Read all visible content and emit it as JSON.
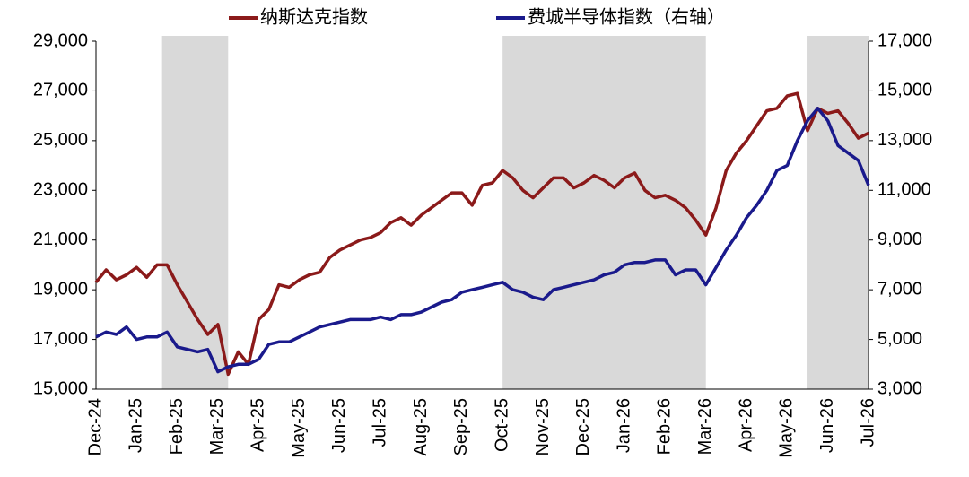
{
  "chart_data": {
    "type": "line",
    "categories": [
      "Dec-24",
      null,
      null,
      null,
      "Jan-25",
      null,
      null,
      null,
      "Feb-25",
      null,
      null,
      null,
      "Mar-25",
      null,
      null,
      null,
      "Apr-25",
      null,
      null,
      null,
      "May-25",
      null,
      null,
      null,
      "Jun-25",
      null,
      null,
      null,
      "Jul-25",
      null,
      null,
      null,
      "Aug-25",
      null,
      null,
      null,
      "Sep-25",
      null,
      null,
      null,
      "Oct-25",
      null,
      null,
      null,
      "Nov-25",
      null,
      null,
      null,
      "Dec-25",
      null,
      null,
      null,
      "Jan-26",
      null,
      null,
      null,
      "Feb-26",
      null,
      null,
      null,
      "Mar-26",
      null,
      null,
      null,
      "Apr-26",
      null,
      null,
      null,
      "May-26",
      null,
      null,
      null,
      "Jun-26",
      null,
      null,
      null,
      "Jul-26"
    ],
    "series": [
      {
        "name": "纳斯达克指数",
        "color": "#8b1a1a",
        "values": [
          19300,
          19800,
          19400,
          19600,
          19900,
          19500,
          20000,
          20000,
          19200,
          18500,
          17800,
          17200,
          17600,
          15600,
          16500,
          16000,
          17800,
          18200,
          19200,
          19100,
          19400,
          19600,
          19700,
          20300,
          20600,
          20800,
          21000,
          21100,
          21300,
          21700,
          21900,
          21600,
          22000,
          22300,
          22600,
          22900,
          22900,
          22400,
          23200,
          23300,
          23800,
          23500,
          23000,
          22700,
          23100,
          23500,
          23500,
          23100,
          23300,
          23600,
          23400,
          23100,
          23500,
          23700,
          23000,
          22700,
          22800,
          22600,
          22300,
          21800,
          21200,
          22300,
          23800,
          24500,
          25000,
          25600,
          26200,
          26300,
          26800,
          26900,
          25400,
          26300,
          26100,
          26200,
          25700,
          25100,
          25300
        ]
      },
      {
        "name": "费城半导体指数（右轴）",
        "color": "#1a1a8c",
        "axis": "y2",
        "values": [
          5100,
          5300,
          5200,
          5500,
          5000,
          5100,
          5100,
          5300,
          4700,
          4600,
          4500,
          4600,
          3700,
          3900,
          4000,
          4000,
          4200,
          4800,
          4900,
          4900,
          5100,
          5300,
          5500,
          5600,
          5700,
          5800,
          5800,
          5800,
          5900,
          5800,
          6000,
          6000,
          6100,
          6300,
          6500,
          6600,
          6900,
          7000,
          7100,
          7200,
          7300,
          7000,
          6900,
          6700,
          6600,
          7000,
          7100,
          7200,
          7300,
          7400,
          7600,
          7700,
          8000,
          8100,
          8100,
          8200,
          8200,
          7600,
          7800,
          7800,
          7200,
          7900,
          8600,
          9200,
          9900,
          10400,
          11000,
          11800,
          12000,
          13000,
          13800,
          14300,
          13800,
          12800,
          12500,
          12200,
          11200
        ]
      }
    ],
    "ylim": [
      15000,
      29000
    ],
    "yticks": [
      {
        "value": 15000,
        "label": "15,000"
      },
      {
        "value": 17000,
        "label": "17,000"
      },
      {
        "value": 19000,
        "label": "19,000"
      },
      {
        "value": 21000,
        "label": "21,000"
      },
      {
        "value": 23000,
        "label": "23,000"
      },
      {
        "value": 25000,
        "label": "25,000"
      },
      {
        "value": 27000,
        "label": "27,000"
      },
      {
        "value": 29000,
        "label": "29,000"
      }
    ],
    "y2lim": [
      3000,
      17000
    ],
    "y2ticks": [
      {
        "value": 3000,
        "label": "3,000"
      },
      {
        "value": 5000,
        "label": "5,000"
      },
      {
        "value": 7000,
        "label": "7,000"
      },
      {
        "value": 9000,
        "label": "9,000"
      },
      {
        "value": 11000,
        "label": "11,000"
      },
      {
        "value": 13000,
        "label": "13,000"
      },
      {
        "value": 15000,
        "label": "15,000"
      },
      {
        "value": 17000,
        "label": "17,000"
      }
    ],
    "shaded": [
      [
        6.5,
        13
      ],
      [
        40,
        60
      ],
      [
        70,
        76
      ]
    ],
    "shade_color": "#d9d9d9"
  }
}
